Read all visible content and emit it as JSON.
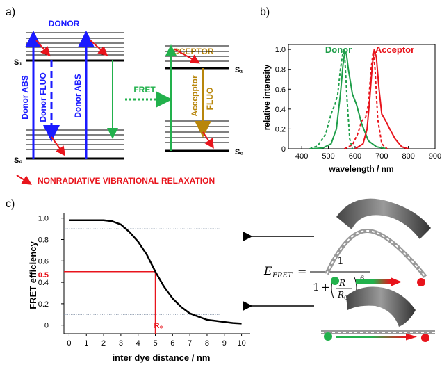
{
  "panel_a": {
    "label": "a)",
    "donor_title": "DONOR",
    "acceptor_title": "ACCEPTOR",
    "s1_left": "S₁",
    "s0_left": "S₀",
    "s1_right": "S₁",
    "s0_right": "S₀",
    "donor_abs_1": "Donor ABS",
    "donor_fluo": "Donor FLUO",
    "donor_abs_2": "Donor ABS",
    "fret": "FRET",
    "acceptor_fluo_1": "Accepptor",
    "acceptor_fluo_2": "FLUO",
    "legend": "NONRADIATIVE VIBRATIONAL RELAXATION",
    "colors": {
      "abs": "#1a1aff",
      "fluo_donor": "#1a1aff",
      "fret": "#22b14c",
      "fluo_acceptor": "#b8860b",
      "relax": "#e8141c"
    }
  },
  "chart_data": [
    {
      "type": "line",
      "panel_label": "b)",
      "xlabel": "wavelength / nm",
      "ylabel": "relative intensity",
      "xlim": [
        350,
        900
      ],
      "ylim": [
        0,
        1.05
      ],
      "x_ticks": [
        400,
        500,
        600,
        700,
        800,
        900
      ],
      "y_ticks": [
        "0",
        "0.2",
        "0.4",
        "0.6",
        "0.8",
        "1.0"
      ],
      "annotations": [
        "Donor",
        "Acceptor"
      ],
      "series": [
        {
          "name": "Donor",
          "style": "dashed",
          "color": "#1f9e4a",
          "x": [
            430,
            460,
            490,
            510,
            525,
            535,
            545,
            555,
            562,
            570,
            580,
            590
          ],
          "y": [
            0.0,
            0.03,
            0.15,
            0.35,
            0.45,
            0.55,
            0.8,
            0.98,
            0.9,
            0.5,
            0.1,
            0.0
          ]
        },
        {
          "name": "Donor",
          "style": "solid",
          "color": "#1f9e4a",
          "x": [
            440,
            480,
            510,
            530,
            545,
            555,
            562,
            568,
            575,
            590,
            605,
            625,
            650,
            680,
            720
          ],
          "y": [
            0.0,
            0.01,
            0.05,
            0.2,
            0.55,
            0.85,
            0.98,
            0.95,
            0.8,
            0.55,
            0.45,
            0.25,
            0.08,
            0.02,
            0.0
          ]
        },
        {
          "name": "Acceptor",
          "style": "dashed",
          "color": "#e8141c",
          "x": [
            560,
            590,
            610,
            625,
            640,
            650,
            660,
            668,
            675,
            685,
            700,
            720
          ],
          "y": [
            0.0,
            0.04,
            0.15,
            0.28,
            0.32,
            0.45,
            0.8,
            0.98,
            0.8,
            0.3,
            0.05,
            0.0
          ]
        },
        {
          "name": "Acceptor",
          "style": "solid",
          "color": "#e8141c",
          "x": [
            600,
            630,
            645,
            655,
            665,
            672,
            680,
            690,
            700,
            715,
            730,
            750,
            775,
            800
          ],
          "y": [
            0.0,
            0.05,
            0.2,
            0.5,
            0.85,
            1.0,
            0.92,
            0.6,
            0.35,
            0.28,
            0.2,
            0.1,
            0.02,
            0.0
          ]
        }
      ]
    },
    {
      "type": "line",
      "panel_label": "c)",
      "xlabel": "inter dye distance / nm",
      "ylabel": "FRET efficiency",
      "xlim": [
        -0.3,
        10.5
      ],
      "ylim": [
        -0.08,
        1.05
      ],
      "x_ticks": [
        "0",
        "1",
        "2",
        "3",
        "4",
        "5",
        "6",
        "7",
        "8",
        "9",
        "10"
      ],
      "y_ticks": [
        "0",
        "0.2",
        "0.4",
        "0.6",
        "0.8",
        "1.0"
      ],
      "r0_value": 5,
      "half_label": "0.5",
      "r0_label": "R₀",
      "reference_lines": [
        0.1,
        0.9
      ],
      "series": [
        {
          "name": "",
          "color": "#000000",
          "x": [
            0.0,
            0.5,
            1.0,
            1.5,
            2.0,
            2.5,
            3.0,
            3.5,
            4.0,
            4.5,
            5.0,
            5.5,
            6.0,
            6.5,
            7.0,
            7.5,
            8.0,
            8.5,
            9.0,
            9.5,
            10.0
          ],
          "y": [
            0.98,
            0.98,
            0.98,
            0.98,
            0.98,
            0.97,
            0.94,
            0.87,
            0.78,
            0.66,
            0.5,
            0.36,
            0.25,
            0.17,
            0.11,
            0.08,
            0.05,
            0.04,
            0.03,
            0.02,
            0.015
          ]
        }
      ]
    }
  ],
  "equation": {
    "lhs": "E",
    "lhs_sub": "FRET",
    "equals": "=",
    "numerator": "1",
    "one": "1",
    "plus": "+",
    "R": "R",
    "R0": "R",
    "R0_sub": "0",
    "exponent": "6"
  }
}
